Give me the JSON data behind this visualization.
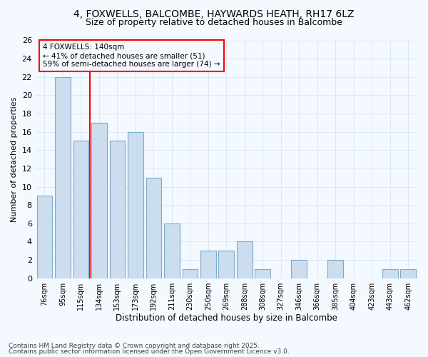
{
  "title_line1": "4, FOXWELLS, BALCOMBE, HAYWARDS HEATH, RH17 6LZ",
  "title_line2": "Size of property relative to detached houses in Balcombe",
  "xlabel": "Distribution of detached houses by size in Balcombe",
  "ylabel": "Number of detached properties",
  "categories": [
    "76sqm",
    "95sqm",
    "115sqm",
    "134sqm",
    "153sqm",
    "173sqm",
    "192sqm",
    "211sqm",
    "230sqm",
    "250sqm",
    "269sqm",
    "288sqm",
    "308sqm",
    "327sqm",
    "346sqm",
    "366sqm",
    "385sqm",
    "404sqm",
    "423sqm",
    "443sqm",
    "462sqm"
  ],
  "values": [
    9,
    22,
    15,
    17,
    15,
    16,
    11,
    6,
    1,
    3,
    3,
    4,
    1,
    0,
    2,
    0,
    2,
    0,
    0,
    1,
    1
  ],
  "bar_color": "#ccddef",
  "bar_edge_color": "#7aabcc",
  "annotation_line1": "4 FOXWELLS: 140sqm",
  "annotation_line2": "← 41% of detached houses are smaller (51)",
  "annotation_line3": "59% of semi-detached houses are larger (74) →",
  "red_line_x": 2.5,
  "ylim": [
    0,
    26
  ],
  "yticks": [
    0,
    2,
    4,
    6,
    8,
    10,
    12,
    14,
    16,
    18,
    20,
    22,
    24,
    26
  ],
  "bg_color": "#f4f8ff",
  "grid_color": "#dde8f8",
  "footer_line1": "Contains HM Land Registry data © Crown copyright and database right 2025.",
  "footer_line2": "Contains public sector information licensed under the Open Government Licence v3.0."
}
